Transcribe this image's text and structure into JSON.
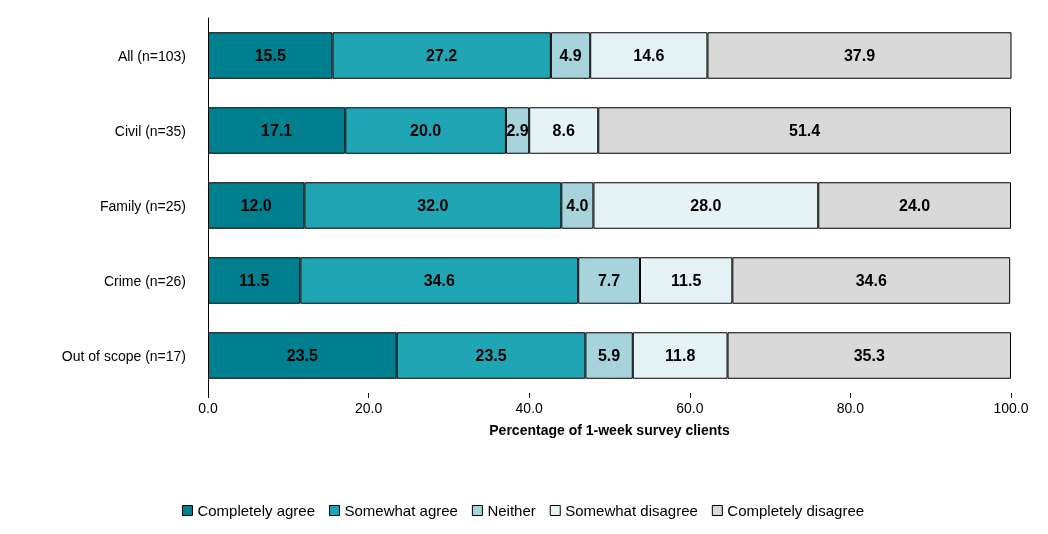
{
  "chart_data": {
    "type": "bar",
    "orientation": "horizontal",
    "stacked": true,
    "xlabel": "Percentage of 1-week survey clients",
    "categories": [
      "All (n=103)",
      "Civil (n=35)",
      "Family (n=25)",
      "Crime (n=26)",
      "Out of scope (n=17)"
    ],
    "series": [
      {
        "name": "Completely agree",
        "color": "#00808f",
        "values": [
          15.5,
          17.1,
          12.0,
          11.5,
          23.5
        ],
        "value_labels": [
          "15.5",
          "17.1",
          "12.0",
          "11.5",
          "23.5"
        ]
      },
      {
        "name": "Somewhat agree",
        "color": "#20a5b5",
        "values": [
          27.2,
          20.0,
          32.0,
          34.6,
          23.5
        ],
        "value_labels": [
          "27.2",
          "20.0",
          "32.0",
          "34.6",
          "23.5"
        ]
      },
      {
        "name": "Neither",
        "color": "#a6d3dc",
        "values": [
          4.9,
          2.9,
          4.0,
          7.7,
          5.9
        ],
        "value_labels": [
          "4.9",
          "2.9",
          "4.0",
          "7.7",
          "5.9"
        ]
      },
      {
        "name": "Somewhat disagree",
        "color": "#e6f3f6",
        "values": [
          14.6,
          8.6,
          28.0,
          11.5,
          11.8
        ],
        "value_labels": [
          "14.6",
          "8.6",
          "28.0",
          "11.5",
          "11.8"
        ]
      },
      {
        "name": "Completely disagree",
        "color": "#d9d9d9",
        "values": [
          37.9,
          51.4,
          24.0,
          34.6,
          35.3
        ],
        "value_labels": [
          "37.9",
          "51.4",
          "24.0",
          "34.6",
          "35.3"
        ]
      }
    ],
    "xlim": [
      0,
      100
    ],
    "xticks": [
      {
        "value": 0,
        "label": "0.0"
      },
      {
        "value": 20,
        "label": "20.0"
      },
      {
        "value": 40,
        "label": "40.0"
      },
      {
        "value": 60,
        "label": "60.0"
      },
      {
        "value": 80,
        "label": "80.0"
      },
      {
        "value": 100,
        "label": "100.0"
      }
    ],
    "grid": false,
    "legend": "bottom"
  }
}
